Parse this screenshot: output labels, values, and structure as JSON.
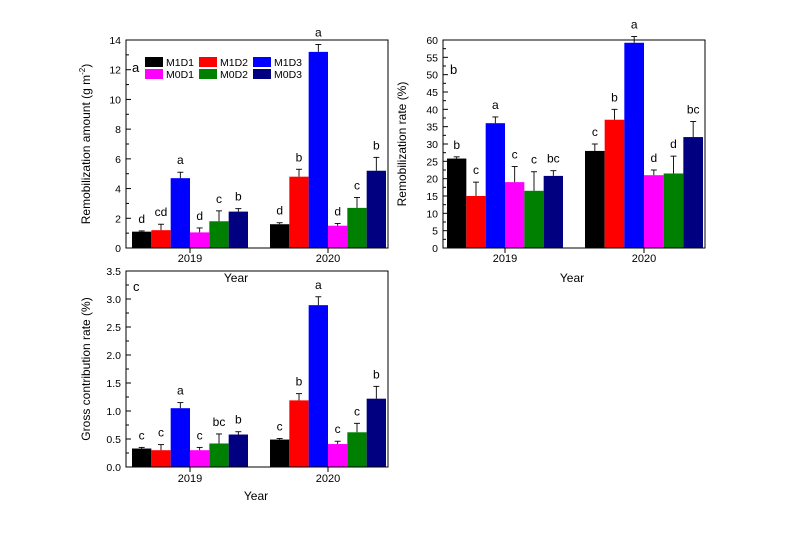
{
  "legend": {
    "items": [
      {
        "code": "M1D1",
        "color": "#000000"
      },
      {
        "code": "M1D2",
        "color": "#ff0000"
      },
      {
        "code": "M1D3",
        "color": "#0000ff"
      },
      {
        "code": "M0D1",
        "color": "#ff00ff"
      },
      {
        "code": "M0D2",
        "color": "#008000"
      },
      {
        "code": "M0D3",
        "color": "#000080"
      }
    ]
  },
  "chart_data": [
    {
      "type": "bar",
      "panel_label": "a",
      "ylabel_main": "Remobilization amount (g m",
      "ylabel_sup": "-2",
      "ylabel_end": ")",
      "xlabel": "Year",
      "categories": [
        "2019",
        "2020"
      ],
      "ylim": [
        0,
        14
      ],
      "yticks": [
        "0",
        "2",
        "4",
        "6",
        "8",
        "10",
        "12",
        "14"
      ],
      "series": [
        {
          "name": "M1D1",
          "values": [
            1.1,
            1.6
          ],
          "errors": [
            0.05,
            0.1
          ],
          "letters": [
            "d",
            "d"
          ]
        },
        {
          "name": "M1D2",
          "values": [
            1.2,
            4.8
          ],
          "errors": [
            0.4,
            0.5
          ],
          "letters": [
            "cd",
            "b"
          ]
        },
        {
          "name": "M1D3",
          "values": [
            4.7,
            13.2
          ],
          "errors": [
            0.4,
            0.5
          ],
          "letters": [
            "a",
            "a"
          ]
        },
        {
          "name": "M0D1",
          "values": [
            1.05,
            1.5
          ],
          "errors": [
            0.3,
            0.15
          ],
          "letters": [
            "d",
            "d"
          ]
        },
        {
          "name": "M0D2",
          "values": [
            1.8,
            2.7
          ],
          "errors": [
            0.7,
            0.7
          ],
          "letters": [
            "c",
            "c"
          ]
        },
        {
          "name": "M0D3",
          "values": [
            2.45,
            5.2
          ],
          "errors": [
            0.2,
            0.9
          ],
          "letters": [
            "b",
            "b"
          ]
        }
      ]
    },
    {
      "type": "bar",
      "panel_label": "b",
      "ylabel_main": "Remobilization rate (%)",
      "xlabel": "Year",
      "categories": [
        "2019",
        "2020"
      ],
      "ylim": [
        0,
        60
      ],
      "yticks": [
        "0",
        "5",
        "10",
        "15",
        "20",
        "25",
        "30",
        "35",
        "40",
        "45",
        "50",
        "55",
        "60"
      ],
      "series": [
        {
          "name": "M1D1",
          "values": [
            25.8,
            28.0
          ],
          "errors": [
            0.5,
            2.0
          ],
          "letters": [
            "b",
            "c"
          ]
        },
        {
          "name": "M1D2",
          "values": [
            15.0,
            37.0
          ],
          "errors": [
            4.0,
            3.0
          ],
          "letters": [
            "c",
            "b"
          ]
        },
        {
          "name": "M1D3",
          "values": [
            36.0,
            59.2
          ],
          "errors": [
            1.8,
            1.8
          ],
          "letters": [
            "a",
            "a"
          ]
        },
        {
          "name": "M0D1",
          "values": [
            19.0,
            21.0
          ],
          "errors": [
            4.5,
            1.5
          ],
          "letters": [
            "c",
            "d"
          ]
        },
        {
          "name": "M0D2",
          "values": [
            16.5,
            21.5
          ],
          "errors": [
            5.5,
            5.0
          ],
          "letters": [
            "c",
            "d"
          ]
        },
        {
          "name": "M0D3",
          "values": [
            20.8,
            32.0
          ],
          "errors": [
            1.5,
            4.5
          ],
          "letters": [
            "bc",
            "bc"
          ]
        }
      ]
    },
    {
      "type": "bar",
      "panel_label": "c",
      "ylabel_main": "Gross contribution rate (%)",
      "xlabel": "Year",
      "categories": [
        "2019",
        "2020"
      ],
      "ylim": [
        0,
        3.5
      ],
      "yticks": [
        "0.0",
        "0.5",
        "1.0",
        "1.5",
        "2.0",
        "2.5",
        "3.0",
        "3.5"
      ],
      "series": [
        {
          "name": "M1D1",
          "values": [
            0.33,
            0.49
          ],
          "errors": [
            0.02,
            0.02
          ],
          "letters": [
            "c",
            "c"
          ]
        },
        {
          "name": "M1D2",
          "values": [
            0.3,
            1.19
          ],
          "errors": [
            0.1,
            0.12
          ],
          "letters": [
            "c",
            "b"
          ]
        },
        {
          "name": "M1D3",
          "values": [
            1.05,
            2.89
          ],
          "errors": [
            0.1,
            0.15
          ],
          "letters": [
            "a",
            "a"
          ]
        },
        {
          "name": "M0D1",
          "values": [
            0.3,
            0.41
          ],
          "errors": [
            0.05,
            0.05
          ],
          "letters": [
            "c",
            "c"
          ]
        },
        {
          "name": "M0D2",
          "values": [
            0.42,
            0.62
          ],
          "errors": [
            0.17,
            0.16
          ],
          "letters": [
            "bc",
            "c"
          ]
        },
        {
          "name": "M0D3",
          "values": [
            0.58,
            1.22
          ],
          "errors": [
            0.05,
            0.22
          ],
          "letters": [
            "b",
            "b"
          ]
        }
      ]
    }
  ]
}
